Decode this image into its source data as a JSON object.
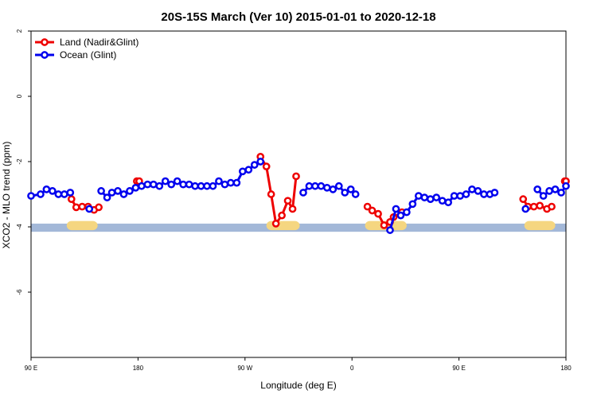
{
  "chart_data": {
    "type": "line",
    "title": "20S-15S March (Ver 10)   2015-01-01 to 2020-12-18",
    "xlabel": "Longitude (deg E)",
    "ylabel": "XCO2 - MLO trend (ppm)",
    "x_ticks": [
      {
        "value": 90,
        "label": "90 E"
      },
      {
        "value": 180,
        "label": "180"
      },
      {
        "value": 270,
        "label": "90 W"
      },
      {
        "value": 360,
        "label": "0"
      },
      {
        "value": 450,
        "label": "90 E"
      },
      {
        "value": 540,
        "label": "180"
      }
    ],
    "y_ticks": [
      {
        "value": 2,
        "label": "2"
      },
      {
        "value": 0,
        "label": "0"
      },
      {
        "value": -2,
        "label": "-2"
      },
      {
        "value": -4,
        "label": "-4"
      },
      {
        "value": -6,
        "label": "-6"
      }
    ],
    "xlim": [
      90,
      540
    ],
    "ylim": [
      -8,
      2
    ],
    "legend_position": "top-left",
    "series": [
      {
        "name": "Land (Nadir&Glint)",
        "color": "#ee0000",
        "segments": [
          [
            [
              124,
              -3.15
            ],
            [
              128,
              -3.4
            ],
            [
              133,
              -3.38
            ],
            [
              138,
              -3.38
            ],
            [
              143,
              -3.48
            ],
            [
              147,
              -3.4
            ]
          ],
          [
            [
              179,
              -2.6
            ],
            [
              181,
              -2.6
            ]
          ],
          [
            [
              283,
              -1.85
            ],
            [
              288,
              -2.15
            ],
            [
              292,
              -3.0
            ],
            [
              296,
              -3.9
            ],
            [
              301,
              -3.65
            ],
            [
              306,
              -3.2
            ],
            [
              310,
              -3.45
            ],
            [
              313,
              -2.45
            ]
          ],
          [
            [
              373,
              -3.38
            ],
            [
              377,
              -3.5
            ],
            [
              382,
              -3.6
            ],
            [
              387,
              -3.95
            ],
            [
              392,
              -3.85
            ],
            [
              395,
              -3.7
            ],
            [
              402,
              -3.55
            ]
          ],
          [
            [
              504,
              -3.15
            ],
            [
              508,
              -3.38
            ],
            [
              513,
              -3.38
            ],
            [
              518,
              -3.35
            ],
            [
              524,
              -3.45
            ],
            [
              528,
              -3.38
            ]
          ],
          [
            [
              539,
              -2.6
            ],
            [
              540,
              -2.6
            ]
          ]
        ]
      },
      {
        "name": "Ocean (Glint)",
        "color": "#0000ee",
        "segments": [
          [
            [
              90,
              -3.05
            ],
            [
              98,
              -3.0
            ],
            [
              103,
              -2.85
            ],
            [
              108,
              -2.9
            ],
            [
              113,
              -3.0
            ],
            [
              118,
              -3.0
            ],
            [
              123,
              -2.95
            ]
          ],
          [
            [
              139,
              -3.45
            ]
          ],
          [
            [
              149,
              -2.9
            ],
            [
              154,
              -3.1
            ],
            [
              158,
              -2.95
            ],
            [
              163,
              -2.9
            ],
            [
              168,
              -3.0
            ],
            [
              173,
              -2.9
            ],
            [
              178,
              -2.8
            ],
            [
              183,
              -2.75
            ],
            [
              188,
              -2.7
            ],
            [
              193,
              -2.7
            ],
            [
              198,
              -2.75
            ],
            [
              203,
              -2.6
            ],
            [
              208,
              -2.7
            ],
            [
              213,
              -2.6
            ],
            [
              218,
              -2.7
            ],
            [
              223,
              -2.7
            ],
            [
              228,
              -2.75
            ],
            [
              233,
              -2.75
            ],
            [
              238,
              -2.75
            ],
            [
              243,
              -2.75
            ],
            [
              248,
              -2.6
            ],
            [
              253,
              -2.7
            ],
            [
              258,
              -2.65
            ],
            [
              263,
              -2.65
            ],
            [
              268,
              -2.3
            ],
            [
              273,
              -2.25
            ],
            [
              278,
              -2.1
            ],
            [
              283,
              -2.0
            ]
          ],
          [
            [
              319,
              -2.95
            ],
            [
              324,
              -2.75
            ],
            [
              329,
              -2.75
            ],
            [
              334,
              -2.75
            ],
            [
              339,
              -2.8
            ],
            [
              344,
              -2.85
            ],
            [
              349,
              -2.75
            ],
            [
              354,
              -2.95
            ],
            [
              359,
              -2.85
            ],
            [
              363,
              -3.0
            ]
          ],
          [
            [
              392,
              -4.1
            ],
            [
              397,
              -3.45
            ],
            [
              401,
              -3.65
            ],
            [
              406,
              -3.55
            ],
            [
              411,
              -3.3
            ],
            [
              416,
              -3.05
            ],
            [
              421,
              -3.1
            ],
            [
              426,
              -3.15
            ],
            [
              431,
              -3.1
            ],
            [
              436,
              -3.2
            ],
            [
              441,
              -3.25
            ],
            [
              446,
              -3.05
            ],
            [
              451,
              -3.05
            ],
            [
              456,
              -3.0
            ],
            [
              461,
              -2.85
            ],
            [
              466,
              -2.9
            ],
            [
              471,
              -3.0
            ],
            [
              476,
              -3.0
            ],
            [
              480,
              -2.95
            ]
          ],
          [
            [
              506,
              -3.45
            ]
          ],
          [
            [
              516,
              -2.85
            ],
            [
              521,
              -3.05
            ],
            [
              526,
              -2.9
            ],
            [
              531,
              -2.85
            ],
            [
              536,
              -2.95
            ],
            [
              540,
              -2.75
            ]
          ]
        ]
      }
    ]
  }
}
